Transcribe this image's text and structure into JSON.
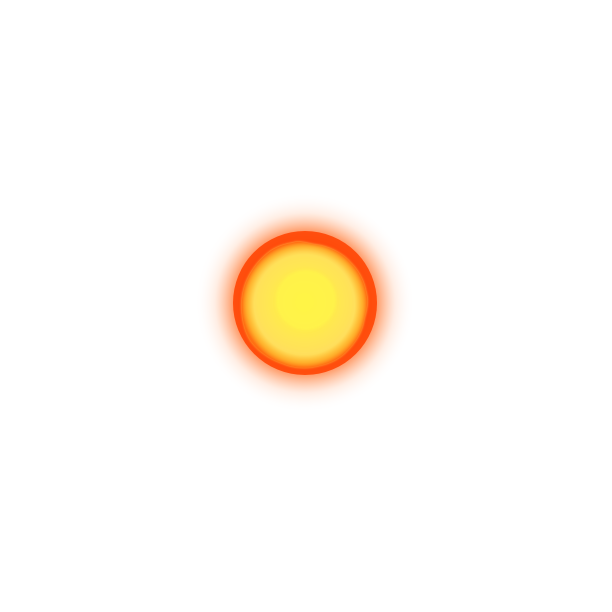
{
  "scene": {
    "subject": "glowing-sun-orb",
    "background_color": "#ffffff",
    "colors": {
      "core": "#fff23a",
      "inner": "#ffe94a",
      "rim": "#ffb21e",
      "corona": "#ff4f0e",
      "outer_glow": "#ff7a1a"
    }
  }
}
